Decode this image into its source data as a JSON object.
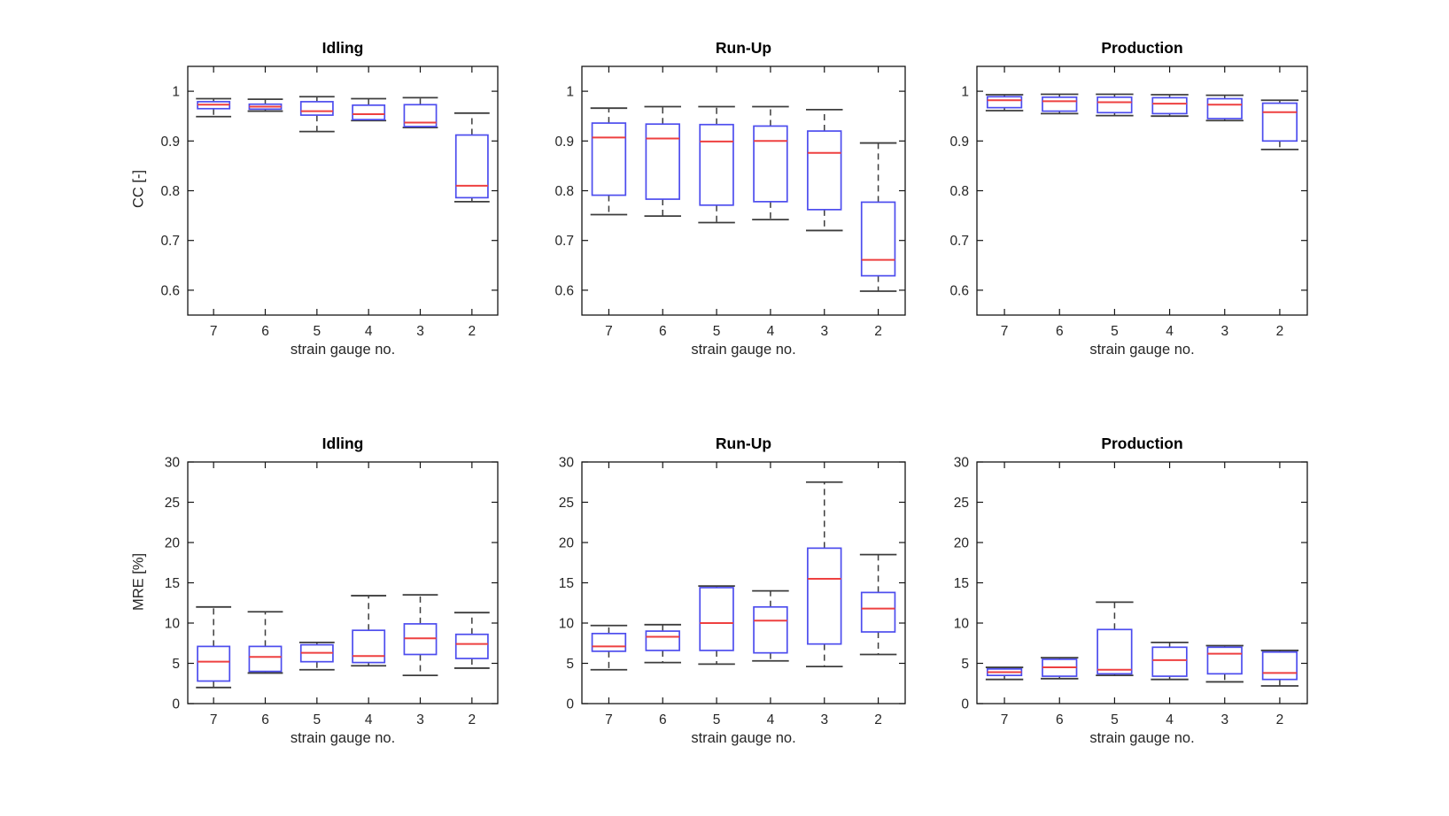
{
  "figure": {
    "background": "#ffffff",
    "box_color": "#4d4dee",
    "median_color": "#ee4040",
    "whisker_color": "#3d3d3d",
    "axis_color": "#151515",
    "tick_label_color": "#2b2b2b"
  },
  "chart_data": [
    {
      "type": "boxplot",
      "title": "Idling",
      "xlabel": "strain gauge no.",
      "ylabel": "CC [-]",
      "categories": [
        "7",
        "6",
        "5",
        "4",
        "3",
        "2"
      ],
      "ylim": [
        0.55,
        1.05
      ],
      "yticks": [
        0.6,
        0.7,
        0.8,
        0.9,
        1
      ],
      "ytick_labels": [
        "0.6",
        "0.7",
        "0.8",
        "0.9",
        "1"
      ],
      "grid": false,
      "legend": null,
      "boxes": [
        {
          "category": "7",
          "whisker_low": 0.949,
          "q1": 0.965,
          "median": 0.973,
          "q3": 0.979,
          "whisker_high": 0.985
        },
        {
          "category": "6",
          "whisker_low": 0.96,
          "q1": 0.964,
          "median": 0.969,
          "q3": 0.974,
          "whisker_high": 0.984
        },
        {
          "category": "5",
          "whisker_low": 0.919,
          "q1": 0.952,
          "median": 0.96,
          "q3": 0.979,
          "whisker_high": 0.989
        },
        {
          "category": "4",
          "whisker_low": 0.941,
          "q1": 0.943,
          "median": 0.954,
          "q3": 0.972,
          "whisker_high": 0.985
        },
        {
          "category": "3",
          "whisker_low": 0.927,
          "q1": 0.929,
          "median": 0.937,
          "q3": 0.973,
          "whisker_high": 0.987
        },
        {
          "category": "2",
          "whisker_low": 0.778,
          "q1": 0.786,
          "median": 0.81,
          "q3": 0.912,
          "whisker_high": 0.956
        }
      ]
    },
    {
      "type": "boxplot",
      "title": "Run-Up",
      "xlabel": "strain gauge no.",
      "ylabel": "",
      "categories": [
        "7",
        "6",
        "5",
        "4",
        "3",
        "2"
      ],
      "ylim": [
        0.55,
        1.05
      ],
      "yticks": [
        0.6,
        0.7,
        0.8,
        0.9,
        1
      ],
      "ytick_labels": [
        "0.6",
        "0.7",
        "0.8",
        "0.9",
        "1"
      ],
      "grid": false,
      "legend": null,
      "boxes": [
        {
          "category": "7",
          "whisker_low": 0.752,
          "q1": 0.791,
          "median": 0.907,
          "q3": 0.936,
          "whisker_high": 0.966
        },
        {
          "category": "6",
          "whisker_low": 0.749,
          "q1": 0.783,
          "median": 0.905,
          "q3": 0.934,
          "whisker_high": 0.969
        },
        {
          "category": "5",
          "whisker_low": 0.736,
          "q1": 0.771,
          "median": 0.899,
          "q3": 0.933,
          "whisker_high": 0.969
        },
        {
          "category": "4",
          "whisker_low": 0.742,
          "q1": 0.778,
          "median": 0.9,
          "q3": 0.93,
          "whisker_high": 0.969
        },
        {
          "category": "3",
          "whisker_low": 0.72,
          "q1": 0.762,
          "median": 0.876,
          "q3": 0.92,
          "whisker_high": 0.963
        },
        {
          "category": "2",
          "whisker_low": 0.598,
          "q1": 0.629,
          "median": 0.661,
          "q3": 0.777,
          "whisker_high": 0.896
        }
      ]
    },
    {
      "type": "boxplot",
      "title": "Production",
      "xlabel": "strain gauge no.",
      "ylabel": "",
      "categories": [
        "7",
        "6",
        "5",
        "4",
        "3",
        "2"
      ],
      "ylim": [
        0.55,
        1.05
      ],
      "yticks": [
        0.6,
        0.7,
        0.8,
        0.9,
        1
      ],
      "ytick_labels": [
        "0.6",
        "0.7",
        "0.8",
        "0.9",
        "1"
      ],
      "grid": false,
      "legend": null,
      "boxes": [
        {
          "category": "7",
          "whisker_low": 0.961,
          "q1": 0.967,
          "median": 0.982,
          "q3": 0.989,
          "whisker_high": 0.993
        },
        {
          "category": "6",
          "whisker_low": 0.955,
          "q1": 0.96,
          "median": 0.98,
          "q3": 0.988,
          "whisker_high": 0.994
        },
        {
          "category": "5",
          "whisker_low": 0.951,
          "q1": 0.957,
          "median": 0.978,
          "q3": 0.988,
          "whisker_high": 0.994
        },
        {
          "category": "4",
          "whisker_low": 0.95,
          "q1": 0.955,
          "median": 0.975,
          "q3": 0.987,
          "whisker_high": 0.993
        },
        {
          "category": "3",
          "whisker_low": 0.941,
          "q1": 0.945,
          "median": 0.973,
          "q3": 0.985,
          "whisker_high": 0.992
        },
        {
          "category": "2",
          "whisker_low": 0.883,
          "q1": 0.9,
          "median": 0.958,
          "q3": 0.976,
          "whisker_high": 0.982
        }
      ]
    },
    {
      "type": "boxplot",
      "title": "Idling",
      "xlabel": "strain gauge no.",
      "ylabel": "MRE [%]",
      "categories": [
        "7",
        "6",
        "5",
        "4",
        "3",
        "2"
      ],
      "ylim": [
        0,
        30
      ],
      "yticks": [
        0,
        5,
        10,
        15,
        20,
        25,
        30
      ],
      "ytick_labels": [
        "0",
        "5",
        "10",
        "15",
        "20",
        "25",
        "30"
      ],
      "grid": false,
      "legend": null,
      "boxes": [
        {
          "category": "7",
          "whisker_low": 2.0,
          "q1": 2.8,
          "median": 5.2,
          "q3": 7.1,
          "whisker_high": 12.0
        },
        {
          "category": "6",
          "whisker_low": 3.8,
          "q1": 4.0,
          "median": 5.8,
          "q3": 7.1,
          "whisker_high": 11.4
        },
        {
          "category": "5",
          "whisker_low": 4.2,
          "q1": 5.2,
          "median": 6.3,
          "q3": 7.3,
          "whisker_high": 7.6
        },
        {
          "category": "4",
          "whisker_low": 4.7,
          "q1": 5.1,
          "median": 5.9,
          "q3": 9.1,
          "whisker_high": 13.4
        },
        {
          "category": "3",
          "whisker_low": 3.5,
          "q1": 6.1,
          "median": 8.1,
          "q3": 9.9,
          "whisker_high": 13.5
        },
        {
          "category": "2",
          "whisker_low": 4.4,
          "q1": 5.6,
          "median": 7.4,
          "q3": 8.6,
          "whisker_high": 11.3
        }
      ]
    },
    {
      "type": "boxplot",
      "title": "Run-Up",
      "xlabel": "strain gauge no.",
      "ylabel": "",
      "categories": [
        "7",
        "6",
        "5",
        "4",
        "3",
        "2"
      ],
      "ylim": [
        0,
        30
      ],
      "yticks": [
        0,
        5,
        10,
        15,
        20,
        25,
        30
      ],
      "ytick_labels": [
        "0",
        "5",
        "10",
        "15",
        "20",
        "25",
        "30"
      ],
      "grid": false,
      "legend": null,
      "boxes": [
        {
          "category": "7",
          "whisker_low": 4.2,
          "q1": 6.5,
          "median": 7.1,
          "q3": 8.7,
          "whisker_high": 9.7
        },
        {
          "category": "6",
          "whisker_low": 5.1,
          "q1": 6.6,
          "median": 8.3,
          "q3": 9.0,
          "whisker_high": 9.8
        },
        {
          "category": "5",
          "whisker_low": 4.9,
          "q1": 6.6,
          "median": 10.0,
          "q3": 14.4,
          "whisker_high": 14.6
        },
        {
          "category": "4",
          "whisker_low": 5.3,
          "q1": 6.3,
          "median": 10.3,
          "q3": 12.0,
          "whisker_high": 14.0
        },
        {
          "category": "3",
          "whisker_low": 4.6,
          "q1": 7.4,
          "median": 15.5,
          "q3": 19.3,
          "whisker_high": 27.5
        },
        {
          "category": "2",
          "whisker_low": 6.1,
          "q1": 8.9,
          "median": 11.8,
          "q3": 13.8,
          "whisker_high": 18.5
        }
      ]
    },
    {
      "type": "boxplot",
      "title": "Production",
      "xlabel": "strain gauge no.",
      "ylabel": "",
      "categories": [
        "7",
        "6",
        "5",
        "4",
        "3",
        "2"
      ],
      "ylim": [
        0,
        30
      ],
      "yticks": [
        0,
        5,
        10,
        15,
        20,
        25,
        30
      ],
      "ytick_labels": [
        "0",
        "5",
        "10",
        "15",
        "20",
        "25",
        "30"
      ],
      "grid": false,
      "legend": null,
      "boxes": [
        {
          "category": "7",
          "whisker_low": 3.0,
          "q1": 3.5,
          "median": 3.9,
          "q3": 4.3,
          "whisker_high": 4.5
        },
        {
          "category": "6",
          "whisker_low": 3.1,
          "q1": 3.4,
          "median": 4.5,
          "q3": 5.5,
          "whisker_high": 5.7
        },
        {
          "category": "5",
          "whisker_low": 3.5,
          "q1": 3.7,
          "median": 4.2,
          "q3": 9.2,
          "whisker_high": 12.6
        },
        {
          "category": "4",
          "whisker_low": 3.0,
          "q1": 3.4,
          "median": 5.4,
          "q3": 7.0,
          "whisker_high": 7.6
        },
        {
          "category": "3",
          "whisker_low": 2.7,
          "q1": 3.7,
          "median": 6.2,
          "q3": 7.0,
          "whisker_high": 7.2
        },
        {
          "category": "2",
          "whisker_low": 2.2,
          "q1": 3.0,
          "median": 3.8,
          "q3": 6.4,
          "whisker_high": 6.6
        }
      ]
    }
  ]
}
